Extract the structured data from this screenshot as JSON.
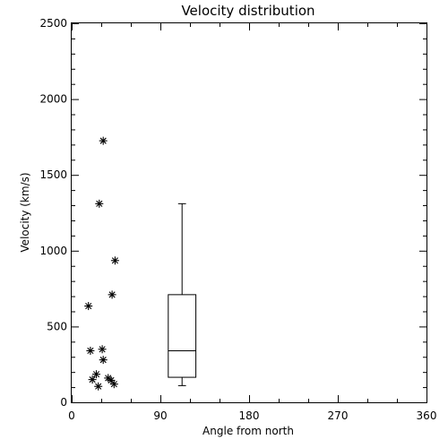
{
  "chart_data": {
    "type": "scatter",
    "title": "Velocity distribution",
    "xlabel": "Angle from north",
    "ylabel": "Velocity (km/s)",
    "xlim": [
      0,
      360
    ],
    "ylim": [
      0,
      2500
    ],
    "x_ticks": [
      0,
      90,
      180,
      270,
      360
    ],
    "y_ticks": [
      0,
      500,
      1000,
      1500,
      2000,
      2500
    ],
    "grid": false,
    "marker": "asterisk",
    "points": [
      {
        "x": 32,
        "y": 1725
      },
      {
        "x": 28,
        "y": 1310
      },
      {
        "x": 44,
        "y": 935
      },
      {
        "x": 41,
        "y": 710
      },
      {
        "x": 17,
        "y": 635
      },
      {
        "x": 19,
        "y": 340
      },
      {
        "x": 31,
        "y": 350
      },
      {
        "x": 32,
        "y": 280
      },
      {
        "x": 25,
        "y": 185
      },
      {
        "x": 21,
        "y": 150
      },
      {
        "x": 37,
        "y": 160
      },
      {
        "x": 40,
        "y": 145
      },
      {
        "x": 43,
        "y": 120
      },
      {
        "x": 27,
        "y": 105
      }
    ],
    "boxplot": {
      "x": 112,
      "half_width_x": 14,
      "cap_half_width_x": 4,
      "min": 110,
      "q1": 165,
      "median": 340,
      "q3": 710,
      "max": 1310
    }
  }
}
